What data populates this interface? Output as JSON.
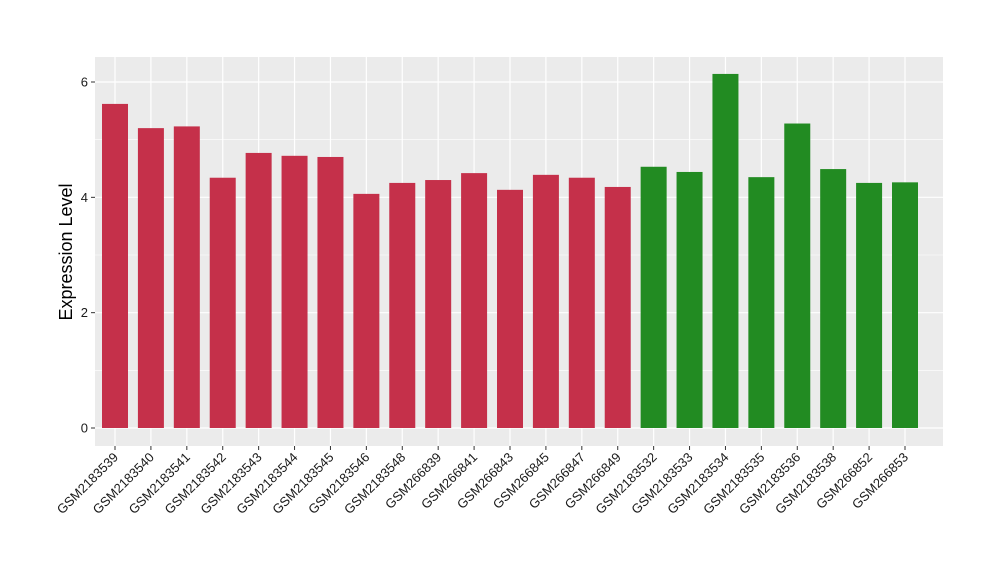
{
  "chart_data": {
    "type": "bar",
    "title": "",
    "xlabel": "",
    "ylabel": "Expression Level",
    "ylim": [
      0,
      6.3
    ],
    "yticks": [
      0,
      2,
      4,
      6
    ],
    "grid": true,
    "legend": "none",
    "colors": {
      "group_a": "#C5304A",
      "group_b": "#228B22",
      "panel": "#EBEBEB",
      "grid": "#FFFFFF"
    },
    "categories": [
      "GSM2183539",
      "GSM2183540",
      "GSM2183541",
      "GSM2183542",
      "GSM2183543",
      "GSM2183544",
      "GSM2183545",
      "GSM2183546",
      "GSM2183548",
      "GSM266839",
      "GSM266841",
      "GSM266843",
      "GSM266845",
      "GSM266847",
      "GSM266849",
      "GSM2183532",
      "GSM2183533",
      "GSM2183534",
      "GSM2183535",
      "GSM2183536",
      "GSM2183538",
      "GSM266852",
      "GSM266853"
    ],
    "values": [
      5.62,
      5.2,
      5.23,
      4.34,
      4.77,
      4.72,
      4.7,
      4.06,
      4.25,
      4.3,
      4.42,
      4.13,
      4.39,
      4.34,
      4.18,
      4.53,
      4.44,
      6.14,
      4.35,
      5.28,
      4.49,
      4.25,
      4.26
    ],
    "bar_groups": [
      "a",
      "a",
      "a",
      "a",
      "a",
      "a",
      "a",
      "a",
      "a",
      "a",
      "a",
      "a",
      "a",
      "a",
      "a",
      "b",
      "b",
      "b",
      "b",
      "b",
      "b",
      "b",
      "b"
    ]
  }
}
